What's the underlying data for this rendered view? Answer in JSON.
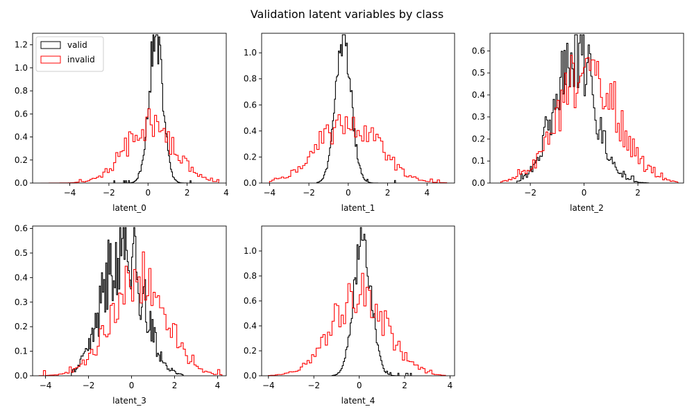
{
  "figure": {
    "title": "Validation latent variables by class",
    "legend_location": "upper left of first panel"
  },
  "colors": {
    "valid": "#000000",
    "invalid": "#ff0000"
  },
  "legend": {
    "items": [
      {
        "label": "valid",
        "color": "#000000"
      },
      {
        "label": "invalid",
        "color": "#ff0000"
      }
    ]
  },
  "chart_data": [
    {
      "type": "histogram",
      "xlabel": "latent_0",
      "xlim": [
        -5.9,
        4.0
      ],
      "ylim": [
        0,
        1.3
      ],
      "xticks": [
        -4,
        -2,
        0,
        2,
        4
      ],
      "yticks": [
        0.0,
        0.2,
        0.4,
        0.6,
        0.8,
        1.0,
        1.2
      ],
      "series": [
        {
          "name": "valid",
          "mu": 0.4,
          "sigma": 0.36,
          "peak": 1.25,
          "xmin": -1.8,
          "xmax": 2.4,
          "binw": 0.05,
          "noise": 0.18,
          "seed": 11
        },
        {
          "name": "invalid",
          "mu": 0.1,
          "sigma": 1.25,
          "peak": 0.5,
          "xmin": -5.5,
          "xmax": 3.6,
          "binw": 0.11,
          "noise": 0.3,
          "seed": 12
        }
      ]
    },
    {
      "type": "histogram",
      "xlabel": "latent_1",
      "xlim": [
        -4.4,
        5.4
      ],
      "ylim": [
        0,
        1.15
      ],
      "xticks": [
        -4,
        -2,
        0,
        2,
        4
      ],
      "yticks": [
        0.0,
        0.2,
        0.4,
        0.6,
        0.8,
        1.0
      ],
      "series": [
        {
          "name": "valid",
          "mu": -0.25,
          "sigma": 0.4,
          "peak": 1.1,
          "xmin": -1.6,
          "xmax": 2.5,
          "binw": 0.05,
          "noise": 0.15,
          "seed": 21
        },
        {
          "name": "invalid",
          "mu": 0.0,
          "sigma": 1.5,
          "peak": 0.48,
          "xmin": -4.0,
          "xmax": 5.0,
          "binw": 0.12,
          "noise": 0.28,
          "seed": 22
        }
      ]
    },
    {
      "type": "histogram",
      "xlabel": "latent_2",
      "xlim": [
        -3.5,
        3.7
      ],
      "ylim": [
        0,
        0.68
      ],
      "xticks": [
        -2,
        0,
        2
      ],
      "yticks": [
        0.0,
        0.1,
        0.2,
        0.3,
        0.4,
        0.5,
        0.6
      ],
      "series": [
        {
          "name": "valid",
          "mu": -0.35,
          "sigma": 0.75,
          "peak": 0.6,
          "xmin": -2.5,
          "xmax": 2.4,
          "binw": 0.05,
          "noise": 0.35,
          "seed": 31
        },
        {
          "name": "invalid",
          "mu": 0.15,
          "sigma": 1.1,
          "peak": 0.5,
          "xmin": -3.1,
          "xmax": 3.5,
          "binw": 0.07,
          "noise": 0.35,
          "seed": 32
        }
      ]
    },
    {
      "type": "histogram",
      "xlabel": "latent_3",
      "xlim": [
        -4.6,
        4.4
      ],
      "ylim": [
        0,
        0.61
      ],
      "xticks": [
        -4,
        -2,
        0,
        2,
        4
      ],
      "yticks": [
        0.0,
        0.1,
        0.2,
        0.3,
        0.4,
        0.5,
        0.6
      ],
      "series": [
        {
          "name": "valid",
          "mu": -0.4,
          "sigma": 0.9,
          "peak": 0.55,
          "xmin": -2.8,
          "xmax": 2.4,
          "binw": 0.05,
          "noise": 0.38,
          "seed": 41
        },
        {
          "name": "invalid",
          "mu": 0.3,
          "sigma": 1.25,
          "peak": 0.4,
          "xmin": -4.3,
          "xmax": 4.2,
          "binw": 0.1,
          "noise": 0.3,
          "seed": 42
        }
      ]
    },
    {
      "type": "histogram",
      "xlabel": "latent_4",
      "xlim": [
        -4.3,
        4.2
      ],
      "ylim": [
        0,
        1.2
      ],
      "xticks": [
        -4,
        -2,
        0,
        2,
        4
      ],
      "yticks": [
        0.0,
        0.2,
        0.4,
        0.6,
        0.8,
        1.0
      ],
      "series": [
        {
          "name": "valid",
          "mu": 0.15,
          "sigma": 0.38,
          "peak": 1.1,
          "xmin": -1.2,
          "xmax": 2.3,
          "binw": 0.05,
          "noise": 0.18,
          "seed": 51
        },
        {
          "name": "invalid",
          "mu": 0.0,
          "sigma": 1.2,
          "peak": 0.65,
          "xmin": -4.0,
          "xmax": 3.8,
          "binw": 0.1,
          "noise": 0.3,
          "seed": 52
        }
      ]
    }
  ]
}
